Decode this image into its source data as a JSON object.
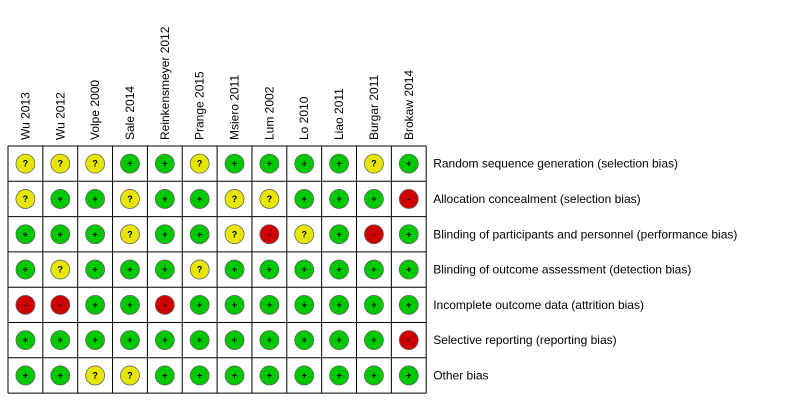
{
  "studies": [
    "Wu 2013",
    "Wu 2012",
    "Volpe 2000",
    "Sale 2014",
    "Reinkensmeyer 2012",
    "Prange 2015",
    "Msiero 2011",
    "Lum 2002",
    "Lo 2010",
    "Liao 2011",
    "Burgar 2011",
    "Brokaw 2014"
  ],
  "domains": [
    "Random sequence generation (selection bias)",
    "Allocation concealment (selection bias)",
    "Blinding of participants and personnel (performance bias)",
    "Blinding of outcome assessment (detection bias)",
    "Incomplete outcome data (attrition bias)",
    "Selective reporting (reporting bias)",
    "Other bias"
  ],
  "ratings": [
    [
      "?",
      "?",
      "?",
      "+",
      "+",
      "?",
      "+",
      "+",
      "+",
      "+",
      "?",
      "+"
    ],
    [
      "?",
      "+",
      "+",
      "?",
      "+",
      "+",
      "?",
      "?",
      "+",
      "+",
      "+",
      "-"
    ],
    [
      "+",
      "+",
      "+",
      "?",
      "+",
      "+",
      "?",
      "-",
      "?",
      "+",
      "-",
      "+"
    ],
    [
      "+",
      "?",
      "+",
      "+",
      "+",
      "?",
      "+",
      "+",
      "+",
      "+",
      "+",
      "+"
    ],
    [
      "-",
      "-",
      "+",
      "+",
      "-",
      "+",
      "+",
      "+",
      "+",
      "+",
      "+",
      "+"
    ],
    [
      "+",
      "+",
      "+",
      "+",
      "+",
      "+",
      "+",
      "+",
      "+",
      "+",
      "+",
      "-"
    ],
    [
      "+",
      "+",
      "?",
      "?",
      "+",
      "+",
      "+",
      "+",
      "+",
      "+",
      "+",
      "+"
    ]
  ]
}
